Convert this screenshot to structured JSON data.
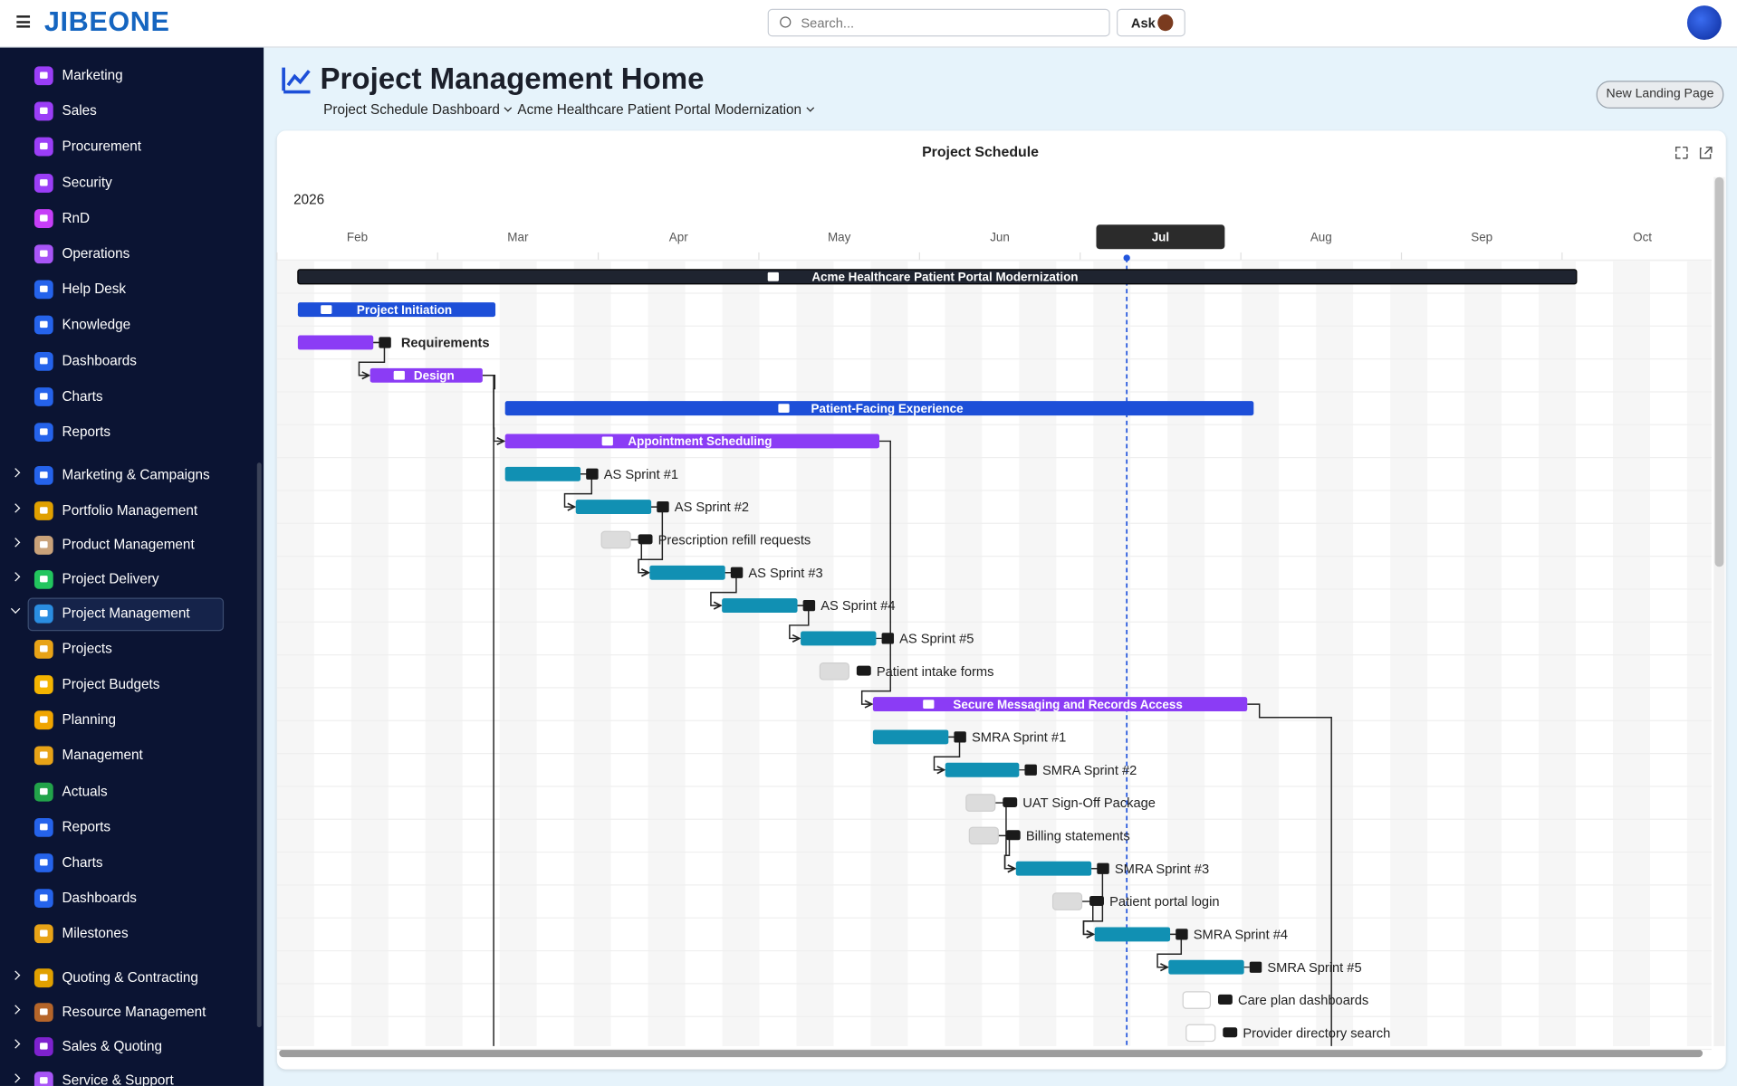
{
  "header": {
    "logo": "JIBEONE",
    "search": "Search...",
    "ask": "Ask"
  },
  "sidebar": {
    "items": [
      {
        "label": "Marketing",
        "color": "#9b3ef7"
      },
      {
        "label": "Sales",
        "color": "#9b3ef7"
      },
      {
        "label": "Procurement",
        "color": "#9b3ef7"
      },
      {
        "label": "Security",
        "color": "#9b3ef7"
      },
      {
        "label": "RnD",
        "color": "#c63ef7"
      },
      {
        "label": "Operations",
        "color": "#a855f7"
      },
      {
        "label": "Help Desk",
        "color": "#2563eb"
      },
      {
        "label": "Knowledge",
        "color": "#2563eb"
      },
      {
        "label": "Dashboards",
        "color": "#2563eb"
      },
      {
        "label": "Charts",
        "color": "#2563eb"
      },
      {
        "label": "Reports",
        "color": "#2563eb"
      },
      {
        "label": "Marketing & Campaigns",
        "color": "#2563eb",
        "group": true
      },
      {
        "label": "Portfolio Management",
        "color": "#e0a000",
        "group": true
      },
      {
        "label": "Product Management",
        "color": "#c9a27a",
        "group": true
      },
      {
        "label": "Project Delivery",
        "color": "#22c55e",
        "group": true
      },
      {
        "label": "Project Management",
        "color": "#2a8de1",
        "group": true,
        "expanded": true,
        "selected": true
      },
      {
        "label": "Projects",
        "color": "#e8a317"
      },
      {
        "label": "Project Budgets",
        "color": "#f4b400"
      },
      {
        "label": "Planning",
        "color": "#f0a500"
      },
      {
        "label": "Management",
        "color": "#e8a317"
      },
      {
        "label": "Actuals",
        "color": "#22a34a"
      },
      {
        "label": "Reports",
        "color": "#2563eb"
      },
      {
        "label": "Charts",
        "color": "#2563eb"
      },
      {
        "label": "Dashboards",
        "color": "#2563eb"
      },
      {
        "label": "Milestones",
        "color": "#e8a317"
      },
      {
        "label": "Quoting & Contracting",
        "color": "#e0a000",
        "group": true
      },
      {
        "label": "Resource Management",
        "color": "#b5652a",
        "group": true
      },
      {
        "label": "Sales & Quoting",
        "color": "#7e22ce",
        "group": true
      },
      {
        "label": "Service & Support",
        "color": "#a855f7",
        "group": true
      }
    ]
  },
  "page": {
    "title": "Project Management Home",
    "breadcrumbs": [
      "Project Schedule Dashboard",
      "Acme Healthcare Patient Portal Modernization"
    ],
    "button": "New Landing Page"
  },
  "gantt": {
    "title": "Project Schedule",
    "year": "2026",
    "xlim": [
      2,
      10.93
    ],
    "xticks": [
      {
        "value": 2,
        "label": "Feb"
      },
      {
        "value": 3,
        "label": "Mar"
      },
      {
        "value": 4,
        "label": "Apr"
      },
      {
        "value": 5,
        "label": "May"
      },
      {
        "value": 6,
        "label": "Jun"
      },
      {
        "value": 7,
        "label": "Jul"
      },
      {
        "value": 8,
        "label": "Aug"
      },
      {
        "value": 9,
        "label": "Sep"
      },
      {
        "value": 10,
        "label": "Oct"
      }
    ],
    "today": 7.29,
    "tasks": [
      {
        "name": "Acme Healthcare Patient Portal Modernization",
        "kind": "project",
        "color": "#1f2430",
        "start": 2.13,
        "end": 10.09
      },
      {
        "name": "Project Initiation",
        "kind": "summary",
        "color": "#1d4fd8",
        "start": 2.13,
        "end": 3.36
      },
      {
        "name": "Requirements",
        "kind": "phase",
        "color": "#8b3cf5",
        "start": 2.13,
        "end": 2.6
      },
      {
        "name": "Design",
        "kind": "phase",
        "color": "#8b3cf5",
        "start": 2.58,
        "end": 3.28
      },
      {
        "name": "Patient-Facing Experience",
        "kind": "summary",
        "color": "#1d4fd8",
        "start": 3.42,
        "end": 8.08
      },
      {
        "name": "Appointment Scheduling",
        "kind": "phase",
        "color": "#8b3cf5",
        "start": 3.42,
        "end": 5.75
      },
      {
        "name": "AS Sprint #1",
        "kind": "sprint",
        "color": "#1190b3",
        "start": 3.42,
        "end": 3.89
      },
      {
        "name": "AS Sprint #2",
        "kind": "sprint",
        "color": "#1190b3",
        "start": 3.86,
        "end": 4.33
      },
      {
        "name": "Prescription refill requests",
        "kind": "deliverable",
        "color": "#dcdcdc",
        "start": 4.02,
        "end": 4.2
      },
      {
        "name": "AS Sprint #3",
        "kind": "sprint",
        "color": "#1190b3",
        "start": 4.32,
        "end": 4.79
      },
      {
        "name": "AS Sprint #4",
        "kind": "sprint",
        "color": "#1190b3",
        "start": 4.77,
        "end": 5.24
      },
      {
        "name": "AS Sprint #5",
        "kind": "sprint",
        "color": "#1190b3",
        "start": 5.26,
        "end": 5.73
      },
      {
        "name": "Patient intake forms",
        "kind": "deliverable",
        "color": "#dcdcdc",
        "start": 5.38,
        "end": 5.56
      },
      {
        "name": "Secure Messaging and Records Access",
        "kind": "phase",
        "color": "#8b3cf5",
        "start": 5.71,
        "end": 8.04
      },
      {
        "name": "SMRA Sprint #1",
        "kind": "sprint",
        "color": "#1190b3",
        "start": 5.71,
        "end": 6.18
      },
      {
        "name": "SMRA Sprint #2",
        "kind": "sprint",
        "color": "#1190b3",
        "start": 6.16,
        "end": 6.62
      },
      {
        "name": "UAT Sign-Off Package",
        "kind": "deliverable",
        "color": "#dcdcdc",
        "start": 6.29,
        "end": 6.47
      },
      {
        "name": "Billing statements",
        "kind": "deliverable",
        "color": "#dcdcdc",
        "start": 6.31,
        "end": 6.49
      },
      {
        "name": "SMRA Sprint #3",
        "kind": "sprint",
        "color": "#1190b3",
        "start": 6.6,
        "end": 7.07
      },
      {
        "name": "Patient portal login",
        "kind": "deliverable",
        "color": "#dcdcdc",
        "start": 6.83,
        "end": 7.01
      },
      {
        "name": "SMRA Sprint #4",
        "kind": "sprint",
        "color": "#1190b3",
        "start": 7.09,
        "end": 7.56
      },
      {
        "name": "SMRA Sprint #5",
        "kind": "sprint",
        "color": "#1190b3",
        "start": 7.55,
        "end": 8.02
      },
      {
        "name": "Care plan dashboards",
        "kind": "deliverable",
        "color": "#ffffff",
        "start": 7.64,
        "end": 7.81
      },
      {
        "name": "Provider directory search",
        "kind": "deliverable",
        "color": "#ffffff",
        "start": 7.66,
        "end": 7.84
      }
    ]
  }
}
